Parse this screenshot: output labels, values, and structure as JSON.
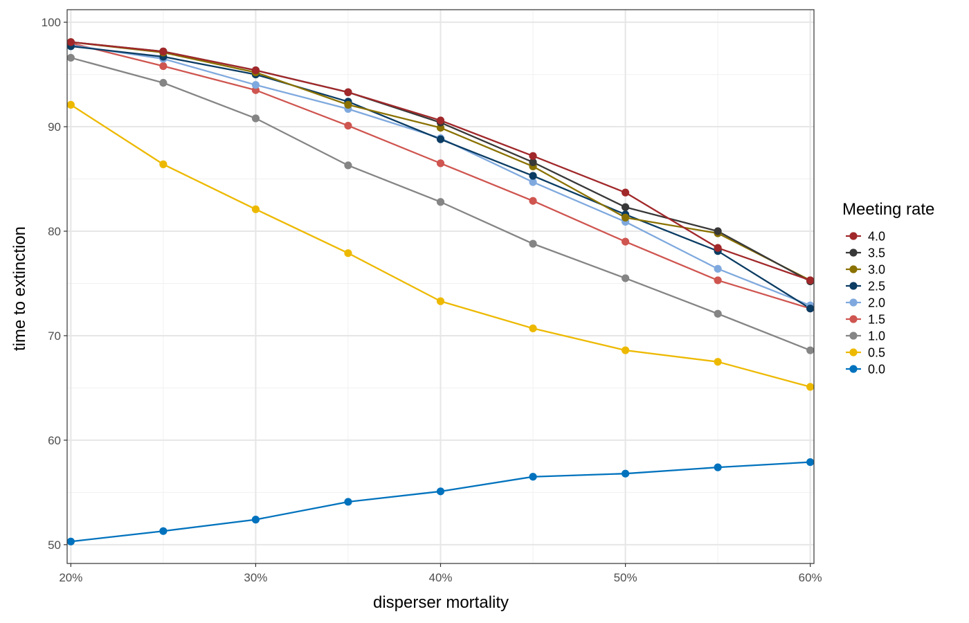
{
  "chart_data": {
    "type": "line",
    "xlabel": "disperser mortality",
    "ylabel": "time to extinction",
    "x": [
      0.2,
      0.25,
      0.3,
      0.35,
      0.4,
      0.45,
      0.5,
      0.55,
      0.6
    ],
    "xlim": [
      0.198,
      0.602
    ],
    "ylim": [
      48.2,
      101.2
    ],
    "x_ticks": [
      {
        "value": 0.2,
        "label": "20%"
      },
      {
        "value": 0.3,
        "label": "30%"
      },
      {
        "value": 0.4,
        "label": "40%"
      },
      {
        "value": 0.5,
        "label": "50%"
      },
      {
        "value": 0.6,
        "label": "60%"
      }
    ],
    "y_ticks": [
      {
        "value": 50,
        "label": "50"
      },
      {
        "value": 60,
        "label": "60"
      },
      {
        "value": 70,
        "label": "70"
      },
      {
        "value": 80,
        "label": "80"
      },
      {
        "value": 90,
        "label": "90"
      },
      {
        "value": 100,
        "label": "100"
      }
    ],
    "grid": true,
    "legend": {
      "title": "Meeting rate",
      "placement": "right"
    },
    "series": [
      {
        "name": "0.0",
        "color": "#0072BD",
        "values": [
          50.3,
          51.3,
          52.4,
          54.1,
          55.1,
          56.5,
          56.8,
          57.4,
          57.9
        ]
      },
      {
        "name": "0.5",
        "color": "#EDB900",
        "values": [
          92.1,
          86.4,
          82.1,
          77.9,
          73.3,
          70.7,
          68.6,
          67.5,
          65.1
        ]
      },
      {
        "name": "1.0",
        "color": "#858585",
        "values": [
          96.6,
          94.2,
          90.8,
          86.3,
          82.8,
          78.8,
          75.5,
          72.1,
          68.6
        ]
      },
      {
        "name": "1.5",
        "color": "#CF5550",
        "values": [
          98.0,
          95.8,
          93.5,
          90.1,
          86.5,
          82.9,
          79.0,
          75.3,
          72.6
        ]
      },
      {
        "name": "2.0",
        "color": "#7FA9DE",
        "values": [
          97.8,
          96.5,
          94.0,
          91.7,
          88.9,
          84.7,
          80.9,
          76.4,
          72.9
        ]
      },
      {
        "name": "2.5",
        "color": "#0B3C63",
        "values": [
          97.7,
          96.7,
          95.0,
          92.4,
          88.8,
          85.3,
          81.6,
          78.1,
          72.6
        ]
      },
      {
        "name": "3.0",
        "color": "#8A7100",
        "values": [
          98.1,
          97.1,
          95.2,
          92.1,
          89.9,
          86.2,
          81.3,
          79.8,
          75.3
        ]
      },
      {
        "name": "3.5",
        "color": "#383838",
        "values": [
          98.1,
          97.2,
          95.4,
          93.3,
          90.4,
          86.6,
          82.3,
          80.0,
          75.2
        ]
      },
      {
        "name": "4.0",
        "color": "#A1282A",
        "values": [
          98.1,
          97.2,
          95.4,
          93.3,
          90.6,
          87.2,
          83.7,
          78.4,
          75.3
        ]
      }
    ]
  }
}
